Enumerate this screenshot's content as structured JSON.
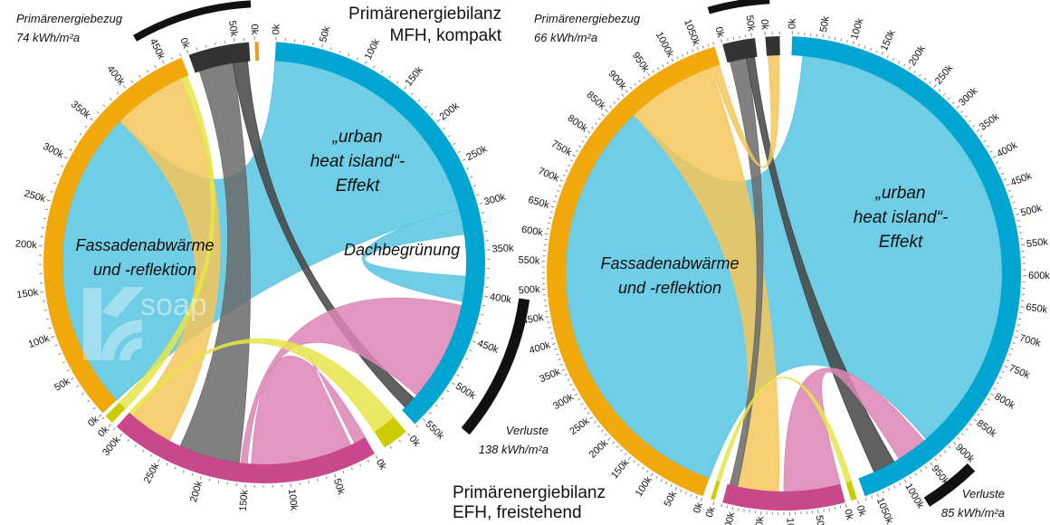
{
  "diagrams": [
    {
      "title": [
        "Primärenergiebilanz",
        "MFH, kompakt"
      ],
      "bezug": [
        "Primärenergiebezug",
        "74 kWh/m²a"
      ],
      "verluste": [
        "Verluste",
        "138 kWh/m²a"
      ],
      "labels": {
        "uhi": [
          "„urban",
          "heat island“-",
          "Effekt"
        ],
        "fassade": [
          "Fassadenabwärme",
          "und -reflektion"
        ],
        "dach": "Dachbegrünung"
      },
      "logo_text": "soap",
      "unit_suffix": "k",
      "segments": [
        {
          "ring_color": "#00a5d1",
          "total_k": 560,
          "axis_max_k": 550
        },
        {
          "ring_color": "#cccc00",
          "total_k": 25,
          "axis_max_k": 0
        },
        {
          "ring_color": "#c9478b",
          "total_k": 310,
          "axis_max_k": 300
        },
        {
          "ring_color": "#cccc00",
          "total_k": 10,
          "axis_max_k": 0
        },
        {
          "ring_color": "#f0a80a",
          "total_k": 470,
          "axis_max_k": 450
        },
        {
          "ring_color": "#333333",
          "total_k": 65,
          "axis_max_k": 50
        },
        {
          "ring_color": "#e0a020",
          "total_k": 3,
          "axis_max_k": 0
        }
      ],
      "flows": [
        {
          "a": [
            4,
            0,
            370
          ],
          "b": [
            0,
            0,
            300
          ],
          "color": "#56c4e0"
        },
        {
          "a": [
            0,
            300,
            330
          ],
          "b": [
            0,
            380,
            410
          ],
          "color": "#56c4e0"
        },
        {
          "a": [
            4,
            370,
            460
          ],
          "b": [
            2,
            250,
            305
          ],
          "color": "#f5c55a"
        },
        {
          "a": [
            5,
            5,
            45
          ],
          "b": [
            2,
            160,
            235
          ],
          "color": "#6a6a6a"
        },
        {
          "a": [
            5,
            45,
            62
          ],
          "b": [
            0,
            540,
            555
          ],
          "color": "#444444"
        },
        {
          "a": [
            0,
            415,
            535
          ],
          "b": [
            2,
            150,
            158
          ],
          "color": "#dc85b4"
        },
        {
          "a": [
            2,
            20,
            145
          ],
          "b": [
            2,
            0,
            15
          ],
          "color": "#dc85b4"
        },
        {
          "a": [
            3,
            0,
            10
          ],
          "b": [
            4,
            460,
            468
          ],
          "color": "#e5e54a"
        },
        {
          "a": [
            1,
            0,
            25
          ],
          "b": [
            2,
            305,
            310
          ],
          "color": "#e5e54a"
        }
      ]
    },
    {
      "title": [
        "Primärenergiebilanz",
        "EFH, freistehend"
      ],
      "bezug": [
        "Primärenergiebezug",
        "66 kWh/m²a"
      ],
      "verluste": [
        "Verluste",
        "85 kWh/m²a"
      ],
      "labels": {
        "uhi": [
          "„urban",
          "heat island“-",
          "Effekt"
        ],
        "fassade": [
          "Fassadenabwärme",
          "und -reflektion"
        ]
      },
      "unit_suffix": "k",
      "segments": [
        {
          "ring_color": "#00a5d1",
          "total_k": 1070,
          "axis_max_k": 1050
        },
        {
          "ring_color": "#cccc00",
          "total_k": 8,
          "axis_max_k": 0
        },
        {
          "ring_color": "#c9478b",
          "total_k": 220,
          "axis_max_k": 200
        },
        {
          "ring_color": "#cccc00",
          "total_k": 5,
          "axis_max_k": 0
        },
        {
          "ring_color": "#f0a80a",
          "total_k": 1080,
          "axis_max_k": 1050
        },
        {
          "ring_color": "#333333",
          "total_k": 55,
          "axis_max_k": 50
        },
        {
          "ring_color": "#333333",
          "total_k": 20,
          "axis_max_k": 0
        }
      ],
      "flows": [
        {
          "a": [
            4,
            0,
            880
          ],
          "b": [
            0,
            20,
            930
          ],
          "color": "#56c4e0"
        },
        {
          "a": [
            4,
            880,
            1060
          ],
          "b": [
            2,
            120,
            200
          ],
          "color": "#f5c55a"
        },
        {
          "a": [
            5,
            5,
            35
          ],
          "b": [
            2,
            200,
            215
          ],
          "color": "#6a6a6a"
        },
        {
          "a": [
            5,
            35,
            50
          ],
          "b": [
            0,
            1000,
            1040
          ],
          "color": "#444444"
        },
        {
          "a": [
            6,
            2,
            18
          ],
          "b": [
            4,
            1062,
            1078
          ],
          "color": "#f5c55a"
        },
        {
          "a": [
            2,
            0,
            110
          ],
          "b": [
            0,
            935,
            990
          ],
          "color": "#dc85b4"
        },
        {
          "a": [
            1,
            0,
            8
          ],
          "b": [
            3,
            0,
            5
          ],
          "color": "#e5e54a"
        }
      ]
    }
  ]
}
